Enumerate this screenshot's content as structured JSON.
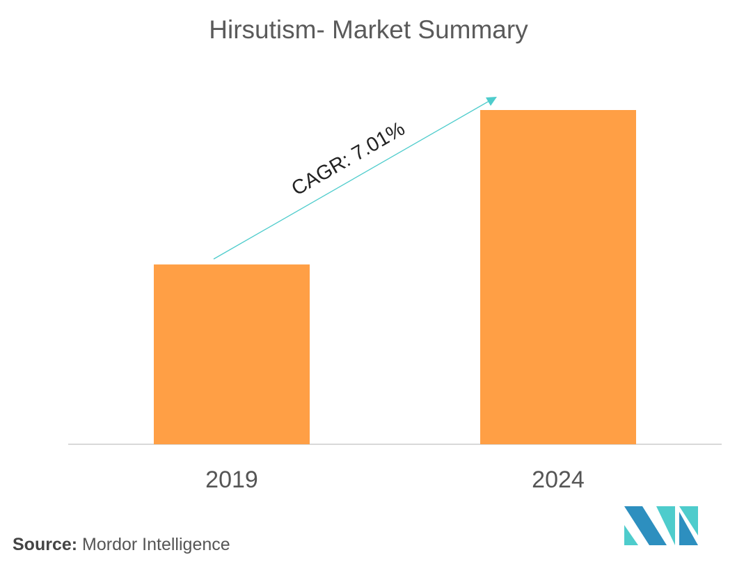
{
  "chart_data": {
    "type": "bar",
    "title": "Hirsutism- Market Summary",
    "categories": [
      "2019",
      "2024"
    ],
    "values": [
      53.8,
      100
    ],
    "value_note_hidden": null,
    "xlabel": "",
    "ylabel": "",
    "ylim": [
      0,
      100
    ],
    "grid": false,
    "bar_color": "#ff9f45",
    "annotation": {
      "text": "CAGR: 7.01%",
      "arrow_color": "#4ecccc"
    }
  },
  "source": {
    "label": "Source:",
    "text": "Mordor Intelligence"
  },
  "colors": {
    "logo_dark": "#2d8fbf",
    "logo_light": "#4ecccc",
    "axis": "#cccccc"
  }
}
